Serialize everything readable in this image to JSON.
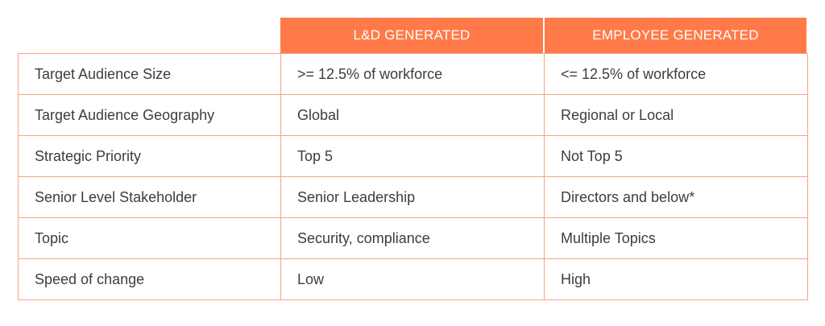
{
  "header": {
    "col1": "L&D GENERATED",
    "col2": "EMPLOYEE GENERATED"
  },
  "rows": [
    {
      "label": "Target Audience Size",
      "ld": ">= 12.5% of workforce",
      "emp": "<= 12.5% of workforce"
    },
    {
      "label": "Target Audience Geography",
      "ld": "Global",
      "emp": "Regional or Local"
    },
    {
      "label": "Strategic Priority",
      "ld": "Top 5",
      "emp": "Not Top 5"
    },
    {
      "label": "Senior Level Stakeholder",
      "ld": "Senior Leadership",
      "emp": "Directors and below*"
    },
    {
      "label": "Topic",
      "ld": "Security, compliance",
      "emp": "Multiple Topics"
    },
    {
      "label": "Speed of change",
      "ld": "Low",
      "emp": "High"
    }
  ],
  "colors": {
    "accent": "#FF7A48",
    "border": "#F9A283",
    "text": "#3a3d45"
  }
}
